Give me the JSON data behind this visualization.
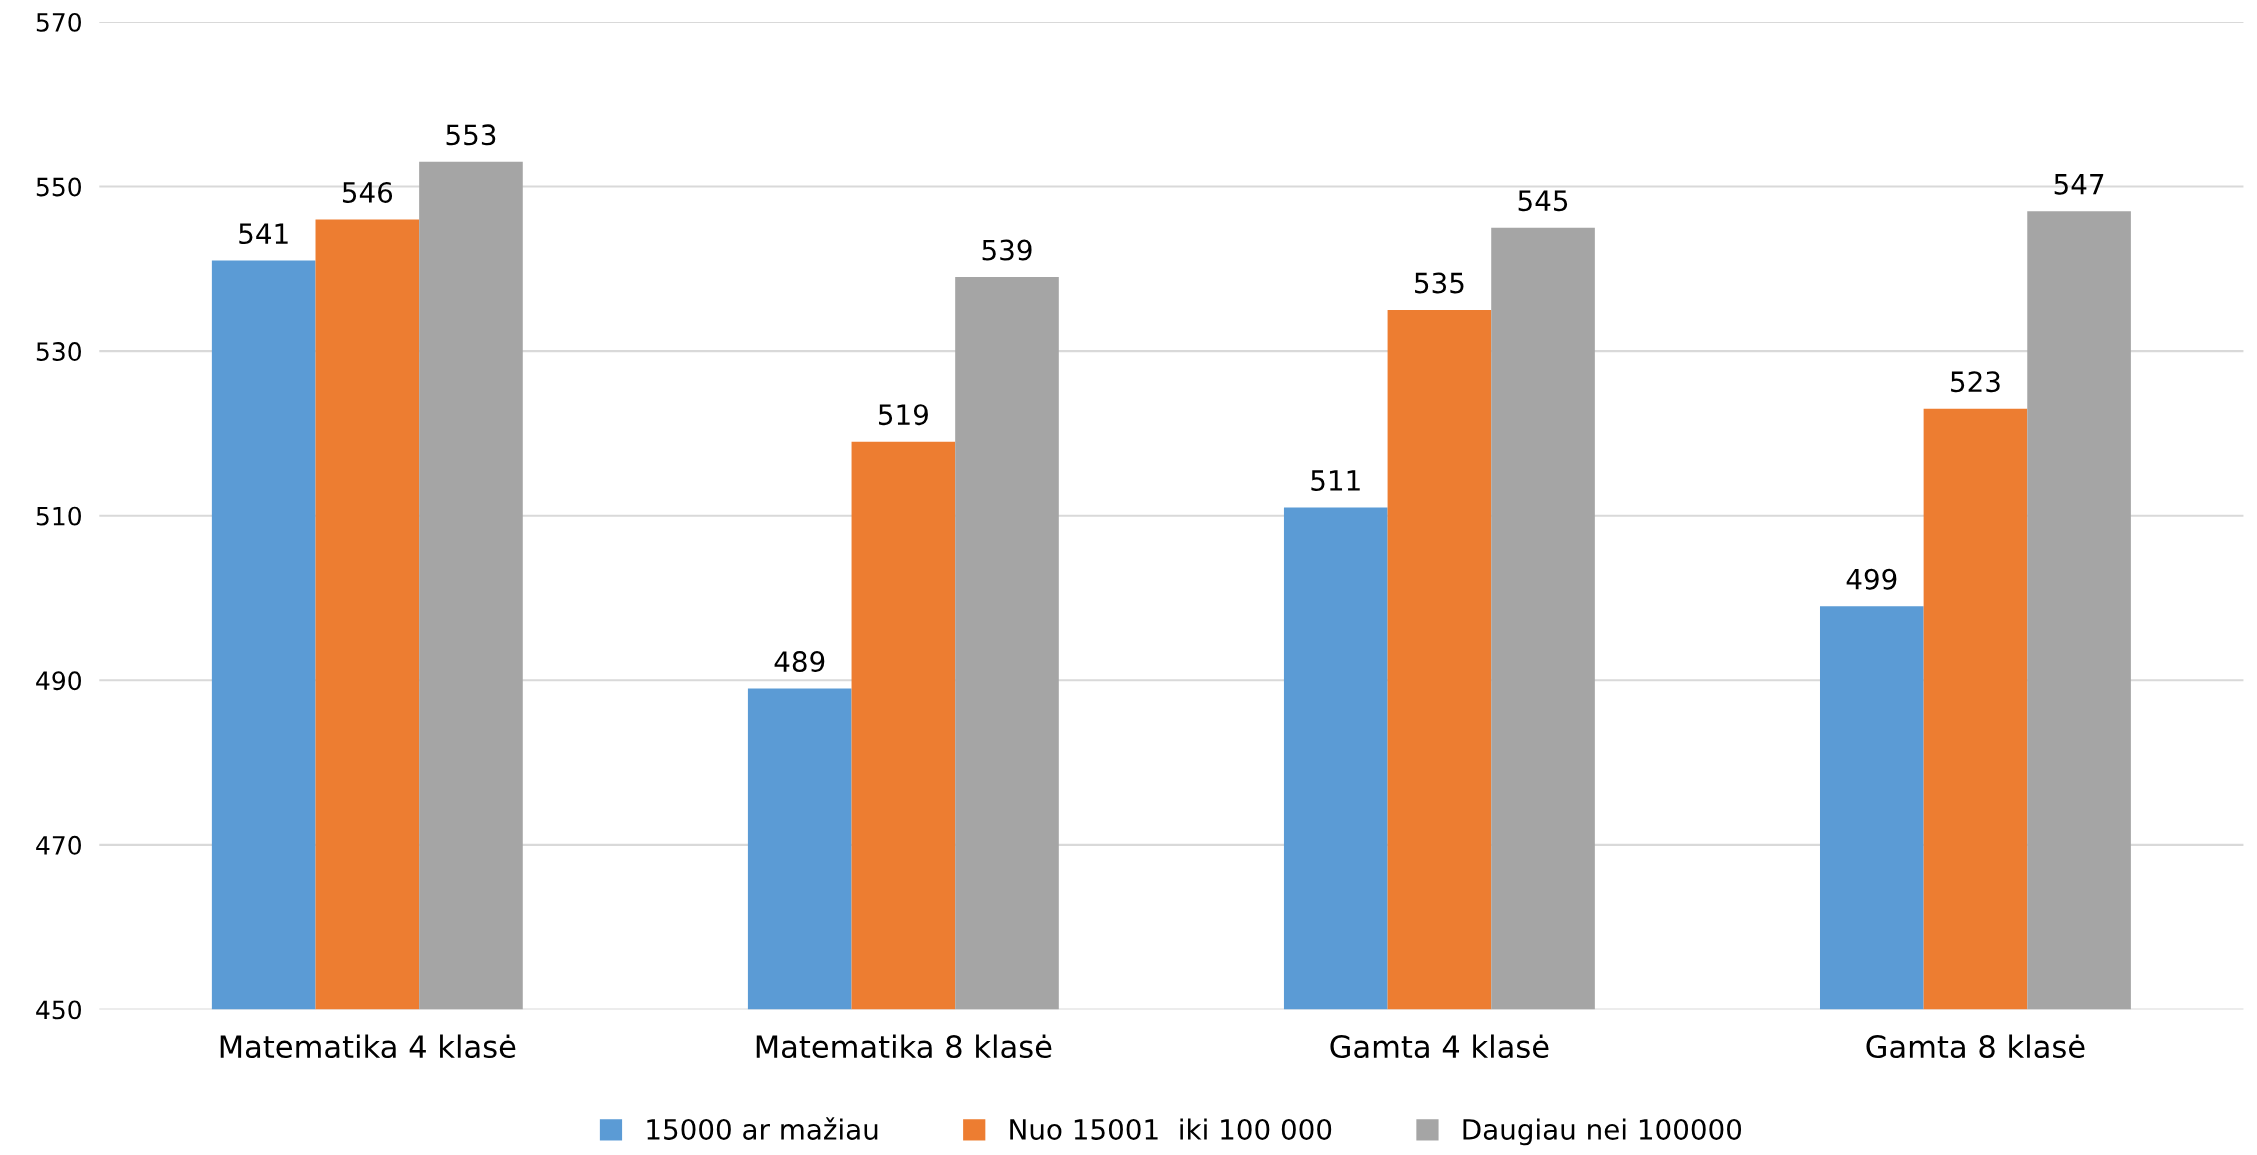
{
  "chart_data": {
    "type": "bar",
    "categories": [
      "Matematika 4 klasė",
      "Matematika 8 klasė",
      "Gamta 4 klasė",
      "Gamta 8 klasė"
    ],
    "series": [
      {
        "name": "15000 ar mažiau",
        "color": "#5b9bd5",
        "values": [
          541,
          489,
          511,
          499
        ]
      },
      {
        "name": "Nuo 15001  iki 100 000",
        "color": "#ed7d31",
        "values": [
          546,
          519,
          535,
          523
        ]
      },
      {
        "name": "Daugiau nei 100000",
        "color": "#a5a5a5",
        "values": [
          553,
          539,
          545,
          547
        ]
      }
    ],
    "ylim": [
      450,
      570
    ],
    "yticks": [
      450,
      470,
      490,
      510,
      530,
      550,
      570
    ],
    "grid": "y",
    "legend": "bottom",
    "data_labels": true
  }
}
